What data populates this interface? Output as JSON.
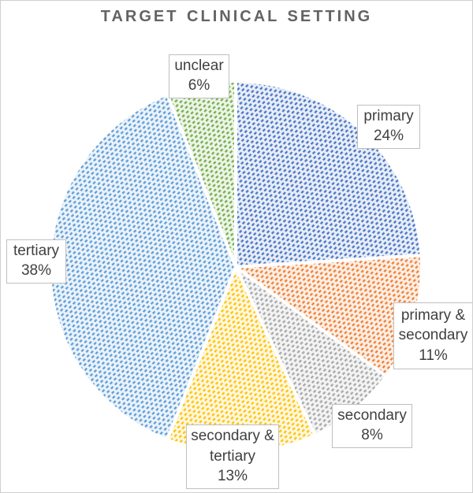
{
  "chart_data": {
    "type": "pie",
    "title": "TARGET CLINICAL SETTING",
    "values_unit": "%",
    "start_angle_deg": 0,
    "direction": "clockwise",
    "fill_style": "diagonal-dashed-pattern on white",
    "legend_position": "none (boxed data labels outside slices)",
    "slices": [
      {
        "id": "primary",
        "label": "primary",
        "value": 24,
        "pct_label": "24%",
        "color": "#4472C4"
      },
      {
        "id": "primary-secondary",
        "label": "primary & secondary",
        "value": 11,
        "pct_label": "11%",
        "color": "#ED7D31"
      },
      {
        "id": "secondary",
        "label": "secondary",
        "value": 8,
        "pct_label": "8%",
        "color": "#A5A5A5"
      },
      {
        "id": "secondary-tertiary",
        "label": "secondary & tertiary",
        "value": 13,
        "pct_label": "13%",
        "color": "#FFC000"
      },
      {
        "id": "tertiary",
        "label": "tertiary",
        "value": 38,
        "pct_label": "38%",
        "color": "#5B9BD5"
      },
      {
        "id": "unclear",
        "label": "unclear",
        "value": 6,
        "pct_label": "6%",
        "color": "#70AD47"
      }
    ]
  }
}
